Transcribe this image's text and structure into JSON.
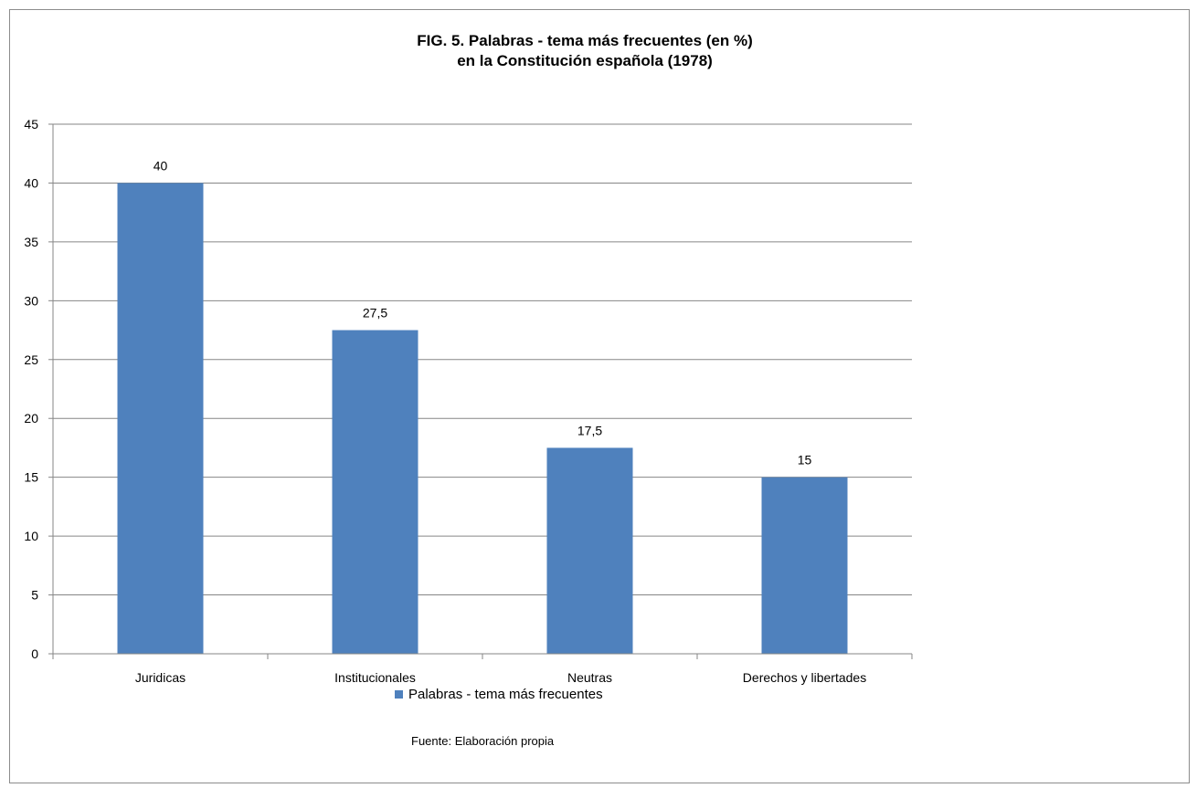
{
  "colors": {
    "bar": "#4f81bd",
    "grid": "#868686",
    "axis": "#868686",
    "text": "#000000"
  },
  "chart_data": {
    "type": "bar",
    "title": "FIG. 5. Palabras - tema más frecuentes (en %)",
    "subtitle": "en la Constitución española (1978)",
    "categories": [
      "Juridicas",
      "Institucionales",
      "Neutras",
      "Derechos y libertades"
    ],
    "series": [
      {
        "name": "Palabras - tema más frecuentes",
        "values": [
          40,
          27.5,
          17.5,
          15
        ],
        "value_labels": [
          "40",
          "27,5",
          "17,5",
          "15"
        ]
      }
    ],
    "xlabel": "",
    "ylabel": "",
    "ylim": [
      0,
      45
    ],
    "y_ticks": [
      "0",
      "5",
      "10",
      "15",
      "20",
      "25",
      "30",
      "35",
      "40",
      "45"
    ],
    "grid": true,
    "legend_position": "bottom"
  },
  "source_note": "Fuente: Elaboración propia"
}
